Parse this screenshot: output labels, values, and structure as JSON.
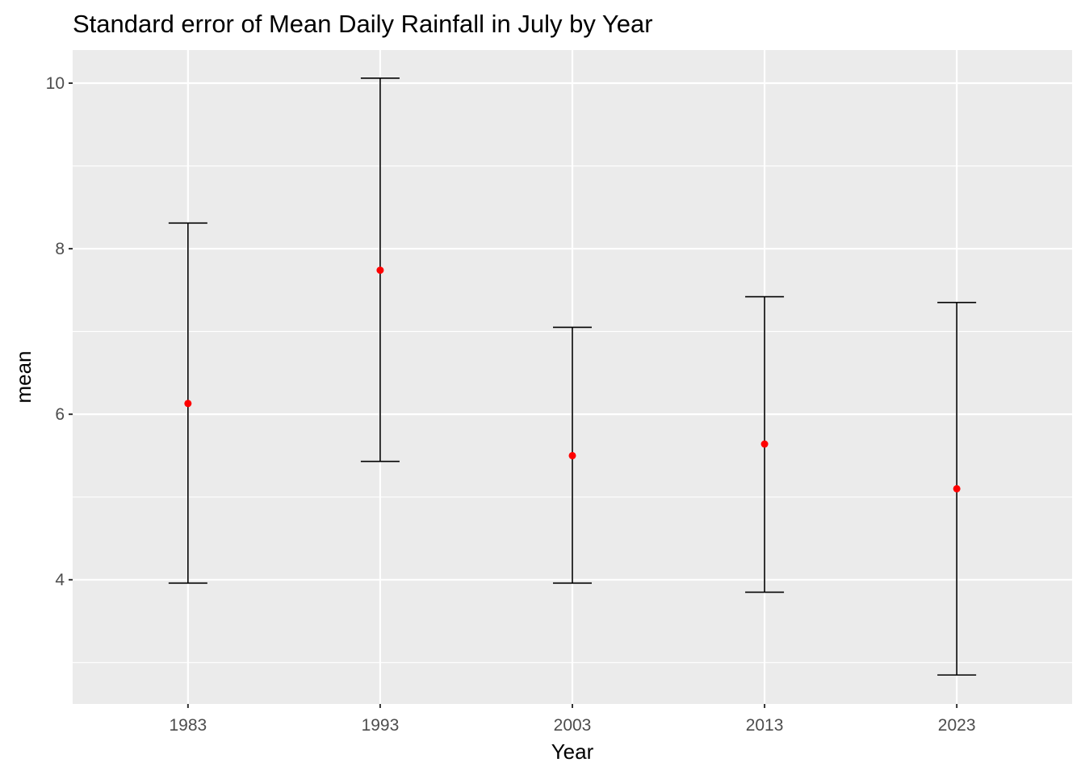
{
  "chart_data": {
    "type": "errorbar",
    "title": "Standard error of Mean Daily Rainfall in July by Year",
    "xlabel": "Year",
    "ylabel": "mean",
    "categories": [
      "1983",
      "1993",
      "2003",
      "2013",
      "2023"
    ],
    "series": [
      {
        "mean": [
          6.13,
          7.74,
          5.5,
          5.64,
          5.1
        ],
        "lower": [
          3.96,
          5.43,
          3.96,
          3.85,
          2.85
        ],
        "upper": [
          8.31,
          10.06,
          7.05,
          7.42,
          7.35
        ]
      }
    ],
    "ylim": [
      2.5,
      10.4
    ],
    "yticks": [
      4,
      6,
      8,
      10
    ],
    "grid": true,
    "legend": "none",
    "colors": {
      "panel_background": "#EBEBEB",
      "grid": "#FFFFFF",
      "point": "#FF0000",
      "errorbar": "#000000"
    }
  }
}
